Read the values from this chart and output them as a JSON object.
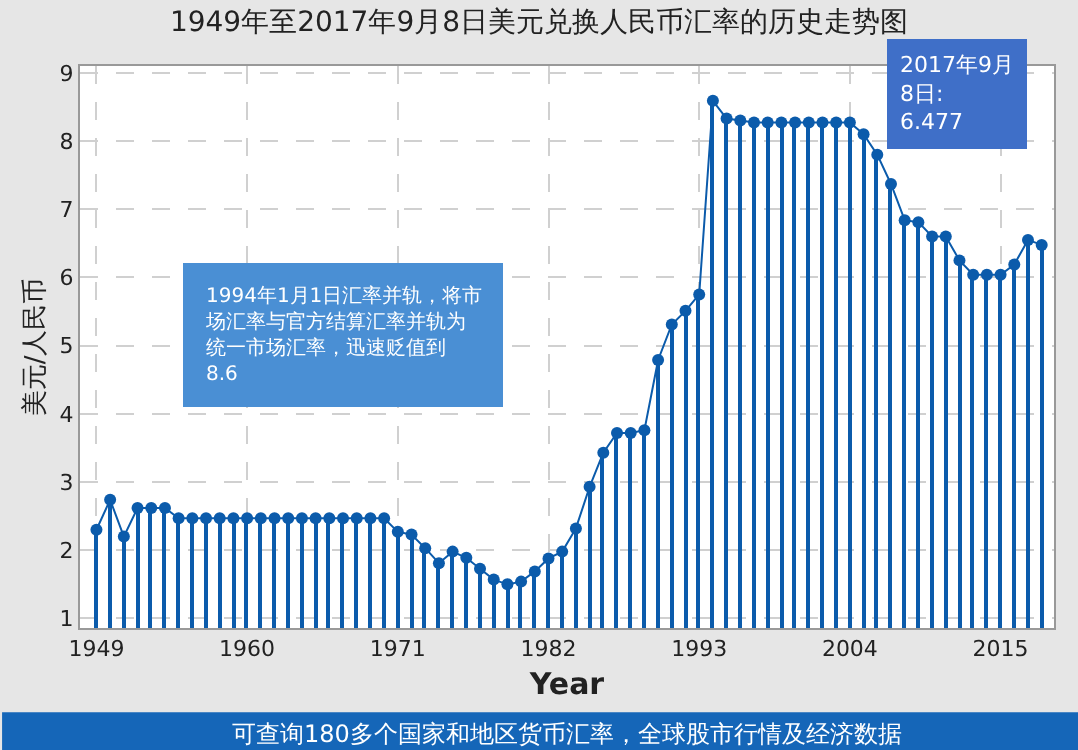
{
  "chart_data": {
    "type": "bar",
    "title": "1949年至2017年9月8日美元兑换人民币汇率的历史走势图",
    "xlabel": "Year",
    "ylabel": "美元/人民币",
    "categories": [
      "1949",
      null,
      null,
      null,
      null,
      null,
      null,
      null,
      null,
      null,
      null,
      "1960",
      null,
      null,
      null,
      null,
      null,
      null,
      null,
      null,
      null,
      null,
      "1971",
      null,
      null,
      null,
      null,
      null,
      null,
      null,
      null,
      null,
      null,
      "1982",
      null,
      null,
      null,
      null,
      null,
      null,
      null,
      null,
      null,
      null,
      "1993",
      null,
      null,
      null,
      null,
      null,
      null,
      null,
      null,
      null,
      null,
      "2004",
      null,
      null,
      null,
      null,
      null,
      null,
      null,
      null,
      null,
      null,
      "2015",
      null,
      null,
      null
    ],
    "series": [
      {
        "color": "#0b5bab",
        "values": [
          2.3,
          2.74,
          2.2,
          2.62,
          2.62,
          2.62,
          2.47,
          2.47,
          2.47,
          2.47,
          2.47,
          2.47,
          2.47,
          2.47,
          2.47,
          2.47,
          2.47,
          2.47,
          2.47,
          2.47,
          2.47,
          2.47,
          2.27,
          2.23,
          2.03,
          1.81,
          1.98,
          1.89,
          1.73,
          1.57,
          1.5,
          1.54,
          1.69,
          1.88,
          1.98,
          2.32,
          2.93,
          3.43,
          3.72,
          3.72,
          3.76,
          4.79,
          5.31,
          5.51,
          5.75,
          8.59,
          8.33,
          8.3,
          8.27,
          8.27,
          8.27,
          8.27,
          8.27,
          8.27,
          8.27,
          8.27,
          8.1,
          7.8,
          7.37,
          6.84,
          6.81,
          6.6,
          6.6,
          6.25,
          6.04,
          6.04,
          6.04,
          6.19,
          6.55,
          6.477
        ]
      },
      {
        "type": "line",
        "color": "#0b5bab",
        "values": [
          2.3,
          2.74,
          2.2,
          2.62,
          2.62,
          2.62,
          2.47,
          2.47,
          2.47,
          2.47,
          2.47,
          2.47,
          2.47,
          2.47,
          2.47,
          2.47,
          2.47,
          2.47,
          2.47,
          2.47,
          2.47,
          2.47,
          2.27,
          2.23,
          2.03,
          1.81,
          1.98,
          1.89,
          1.73,
          1.57,
          1.5,
          1.54,
          1.69,
          1.88,
          1.98,
          2.32,
          2.93,
          3.43,
          3.72,
          3.72,
          3.76,
          4.79,
          5.31,
          5.51,
          5.75,
          8.59,
          8.33,
          8.3,
          8.27,
          8.27,
          8.27,
          8.27,
          8.27,
          8.27,
          8.27,
          8.27,
          8.1,
          7.8,
          7.37,
          6.84,
          6.81,
          6.6,
          6.6,
          6.25,
          6.04,
          6.04,
          6.04,
          6.19,
          6.55,
          6.477
        ]
      }
    ],
    "ylim": [
      0.86,
      9.1
    ],
    "yticks": [
      1,
      2,
      3,
      4,
      5,
      6,
      7,
      8,
      9
    ],
    "grid": true,
    "marker": "circle",
    "line_style": "solid",
    "annotations": [
      "1994年1月1日汇率并轨，将市场汇率与官方结算汇率并轨为统一市场汇率，迅速贬值到8.6",
      "2017年9月8日: 6.477",
      "可查询180多个国家和地区货币汇率，全球股市行情及经济数据"
    ]
  }
}
